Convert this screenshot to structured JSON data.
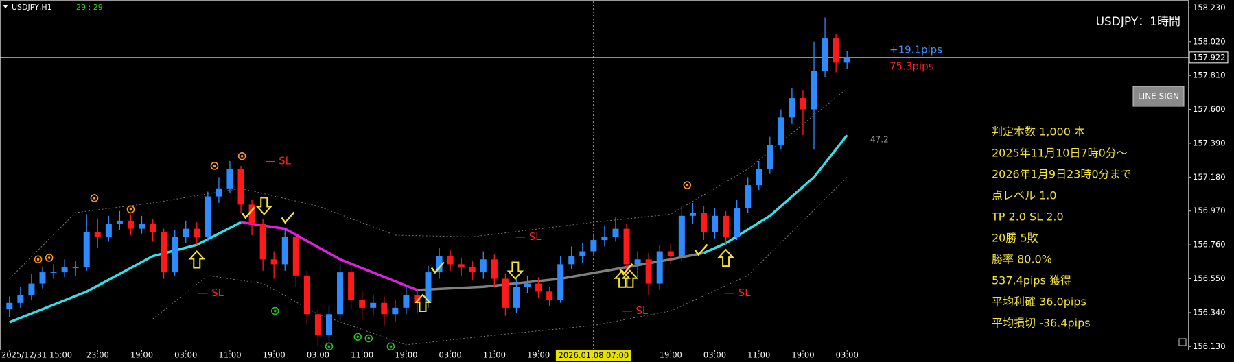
{
  "chart_data": {
    "type": "candlestick",
    "title": "USDJPY,H1",
    "timer": "29 : 29",
    "chart_label": "USDJPY：1時間",
    "up_color": "#2e8bff",
    "down_color": "#ff1a1a",
    "open": [
      156.36,
      156.4,
      156.45,
      156.52,
      156.59,
      156.59,
      156.62,
      156.62,
      156.84,
      156.81,
      156.89,
      156.91,
      156.86,
      156.89,
      156.84,
      156.59,
      156.81,
      156.86,
      156.81,
      157.06,
      157.11,
      157.23,
      157.01,
      156.89,
      156.67,
      156.64,
      156.81,
      156.57,
      156.33,
      156.2,
      156.33,
      156.59,
      156.42,
      156.37,
      156.4,
      156.33,
      156.37,
      156.45,
      156.4,
      156.59,
      156.69,
      156.64,
      156.62,
      156.59,
      156.67,
      156.55,
      156.37,
      156.5,
      156.52,
      156.47,
      156.42,
      156.64,
      156.69,
      156.72,
      156.79,
      156.81,
      156.86,
      156.64,
      156.67,
      156.52,
      156.72,
      156.69,
      156.94,
      156.96,
      156.84,
      156.94,
      156.81,
      156.99,
      157.13,
      157.23,
      157.38,
      157.55,
      157.67,
      157.6,
      157.84,
      158.04,
      157.89
    ],
    "high": [
      156.44,
      156.5,
      156.58,
      156.62,
      156.64,
      156.67,
      156.66,
      156.95,
      156.92,
      156.94,
      156.97,
      156.95,
      156.94,
      156.92,
      156.86,
      156.85,
      156.91,
      156.9,
      157.09,
      157.18,
      157.28,
      157.25,
      157.04,
      156.92,
      156.72,
      156.86,
      156.84,
      156.6,
      156.36,
      156.38,
      156.64,
      156.62,
      156.47,
      156.45,
      156.44,
      156.42,
      156.5,
      156.49,
      156.63,
      156.74,
      156.73,
      156.68,
      156.66,
      156.72,
      156.7,
      156.58,
      156.55,
      156.57,
      156.56,
      156.5,
      156.69,
      156.75,
      156.77,
      156.83,
      156.88,
      156.93,
      156.89,
      156.72,
      156.71,
      156.76,
      156.77,
      157.0,
      157.02,
      157.0,
      156.99,
      156.97,
      157.04,
      157.18,
      157.28,
      157.43,
      157.6,
      157.73,
      157.72,
      158.02,
      158.17,
      158.07,
      157.96
    ],
    "low": [
      156.31,
      156.37,
      156.42,
      156.49,
      156.55,
      156.56,
      156.57,
      156.6,
      156.74,
      156.78,
      156.85,
      156.82,
      156.83,
      156.78,
      156.55,
      156.57,
      156.77,
      156.76,
      156.78,
      157.02,
      157.08,
      156.96,
      156.82,
      156.6,
      156.55,
      156.6,
      156.5,
      156.27,
      156.13,
      156.16,
      156.29,
      156.36,
      156.3,
      156.32,
      156.26,
      156.28,
      156.33,
      156.34,
      156.37,
      156.55,
      156.6,
      156.57,
      156.54,
      156.55,
      156.5,
      156.32,
      156.34,
      156.46,
      156.43,
      156.38,
      156.4,
      156.61,
      156.65,
      156.69,
      156.75,
      156.78,
      156.58,
      156.56,
      156.45,
      156.48,
      156.64,
      156.66,
      156.89,
      156.79,
      156.8,
      156.76,
      156.79,
      156.96,
      157.1,
      157.2,
      157.35,
      157.51,
      157.44,
      157.35,
      157.8,
      157.83,
      157.85
    ],
    "close": [
      156.4,
      156.45,
      156.52,
      156.59,
      156.59,
      156.62,
      156.62,
      156.84,
      156.81,
      156.89,
      156.91,
      156.86,
      156.89,
      156.84,
      156.59,
      156.81,
      156.86,
      156.81,
      157.06,
      157.11,
      157.23,
      157.01,
      156.89,
      156.67,
      156.64,
      156.81,
      156.57,
      156.33,
      156.2,
      156.33,
      156.59,
      156.42,
      156.37,
      156.4,
      156.33,
      156.37,
      156.45,
      156.4,
      156.59,
      156.69,
      156.64,
      156.62,
      156.59,
      156.67,
      156.55,
      156.37,
      156.5,
      156.52,
      156.47,
      156.42,
      156.64,
      156.69,
      156.72,
      156.79,
      156.81,
      156.86,
      156.64,
      156.67,
      156.52,
      156.72,
      156.69,
      156.94,
      156.96,
      156.84,
      156.94,
      156.81,
      156.99,
      157.13,
      157.23,
      157.38,
      157.55,
      157.67,
      157.6,
      157.84,
      158.04,
      157.89,
      157.922
    ],
    "ylim": [
      156.11,
      158.27
    ],
    "yticks": [
      {
        "value": 158.23,
        "label": "158.230"
      },
      {
        "value": 158.02,
        "label": "158.020"
      },
      {
        "value": 157.81,
        "label": "157.810"
      },
      {
        "value": 157.6,
        "label": "157.600"
      },
      {
        "value": 157.39,
        "label": "157.390"
      },
      {
        "value": 157.18,
        "label": "157.180"
      },
      {
        "value": 156.97,
        "label": "156.970"
      },
      {
        "value": 156.76,
        "label": "156.760"
      },
      {
        "value": 156.55,
        "label": "156.550"
      },
      {
        "value": 156.34,
        "label": "156.340"
      },
      {
        "value": 156.13,
        "label": "156.130"
      }
    ],
    "xlim": [
      -0.86,
      107
    ],
    "xticks": [
      {
        "value": 0,
        "label": "2025/12/31 15:00"
      },
      {
        "value": 8,
        "label": "23:00"
      },
      {
        "value": 12,
        "label": "19:00"
      },
      {
        "value": 16,
        "label": "03:00"
      },
      {
        "value": 20,
        "label": "11:00"
      },
      {
        "value": 24,
        "label": "19:00"
      },
      {
        "value": 28,
        "label": "03:00"
      },
      {
        "value": 32,
        "label": "11:00"
      },
      {
        "value": 36,
        "label": "19:00"
      },
      {
        "value": 40,
        "label": "03:00"
      },
      {
        "value": 44,
        "label": "11:00"
      },
      {
        "value": 48,
        "label": "19:00"
      },
      {
        "value": 60,
        "label": "19:00"
      },
      {
        "value": 64,
        "label": "03:00"
      },
      {
        "value": 68,
        "label": "11:00"
      },
      {
        "value": 72,
        "label": "19:00"
      },
      {
        "value": 76,
        "label": "03:00"
      }
    ],
    "crosshair": {
      "value": 53,
      "label": "2026.01.08 07:00",
      "color": "#e8e000"
    },
    "last_price": {
      "value": 157.922,
      "label": "157.922"
    },
    "ma_lines": [
      {
        "color": "#33e0e8",
        "x": [
          0,
          7,
          13,
          17,
          21
        ],
        "values": [
          156.28,
          156.47,
          156.69,
          156.76,
          156.9
        ]
      },
      {
        "color": "#e020e0",
        "x": [
          21,
          25,
          30,
          37
        ],
        "values": [
          156.9,
          156.86,
          156.67,
          156.48
        ]
      },
      {
        "color": "#808080",
        "x": [
          37,
          43,
          50,
          55,
          60,
          63
        ],
        "values": [
          156.48,
          156.5,
          156.55,
          156.61,
          156.67,
          156.71
        ]
      },
      {
        "color": "#33e0e8",
        "x": [
          63,
          65,
          69,
          73,
          76
        ],
        "values": [
          156.71,
          156.77,
          156.94,
          157.18,
          157.44
        ]
      }
    ],
    "bands": [
      {
        "color": "#7a7a7a",
        "x": [
          0,
          6,
          13,
          21,
          28,
          35,
          42,
          53,
          60,
          67,
          76
        ],
        "values": [
          156.55,
          156.96,
          157.02,
          157.11,
          157.0,
          156.82,
          156.81,
          156.9,
          156.95,
          157.23,
          157.73
        ]
      },
      {
        "color": "#7a7a7a",
        "x": [
          13,
          18,
          23,
          28,
          36,
          44,
          53,
          60,
          67,
          76
        ],
        "values": [
          156.3,
          156.57,
          156.52,
          156.33,
          156.14,
          156.2,
          156.26,
          156.35,
          156.57,
          157.18
        ]
      }
    ],
    "up_arrows": {
      "color": "#f2e33a",
      "x": [
        17,
        37.5,
        55.6,
        56.3,
        65
      ],
      "values": [
        156.72,
        156.45,
        156.6,
        156.6,
        156.73
      ]
    },
    "down_arrows": {
      "color": "#f2e33a",
      "x": [
        23.1,
        45.9
      ],
      "values": [
        156.95,
        156.55
      ]
    },
    "checks": {
      "color": "#f2e33a",
      "x": [
        21.6,
        25.2,
        38.8,
        55.9,
        62.7
      ],
      "values": [
        156.95,
        156.92,
        156.61,
        156.6,
        156.72
      ]
    },
    "orange_circles": {
      "color": "#ff9a1a",
      "x": [
        2.6,
        3.6,
        7.7,
        11,
        18.6,
        21.1,
        61.5
      ],
      "values": [
        156.67,
        156.68,
        157.05,
        156.98,
        157.25,
        157.31,
        157.13
      ]
    },
    "green_circles": {
      "color": "#22c422",
      "x": [
        24.1,
        29,
        31.6,
        32.6,
        34.6
      ],
      "values": [
        156.35,
        156.13,
        156.19,
        156.18,
        156.13
      ]
    },
    "sl_labels": {
      "color": "#ff2020",
      "labels": [
        "— SL",
        "— SL",
        "— SL",
        "— SL",
        "— SL"
      ],
      "x": [
        23.2,
        17.1,
        45.9,
        55.6,
        64.9
      ],
      "values": [
        157.28,
        156.46,
        156.81,
        156.35,
        156.46
      ]
    },
    "pips": [
      {
        "label": "+19.1pips",
        "color": "#3d8eff"
      },
      {
        "label": "75.3pips",
        "color": "#ff2020"
      }
    ],
    "button": "LINE SIGN",
    "indicator_value": 47.2,
    "stats": [
      "判定本数 1,000 本",
      "2025年11月10日7時0分～",
      "2026年1月9日23時0分まで",
      "点レベル 1.0",
      "TP 2.0 SL 2.0",
      "20勝 5敗",
      "勝率 80.0%",
      "537.4pips 獲得",
      "平均利確 36.0pips",
      "平均損切 -36.4pips"
    ]
  }
}
